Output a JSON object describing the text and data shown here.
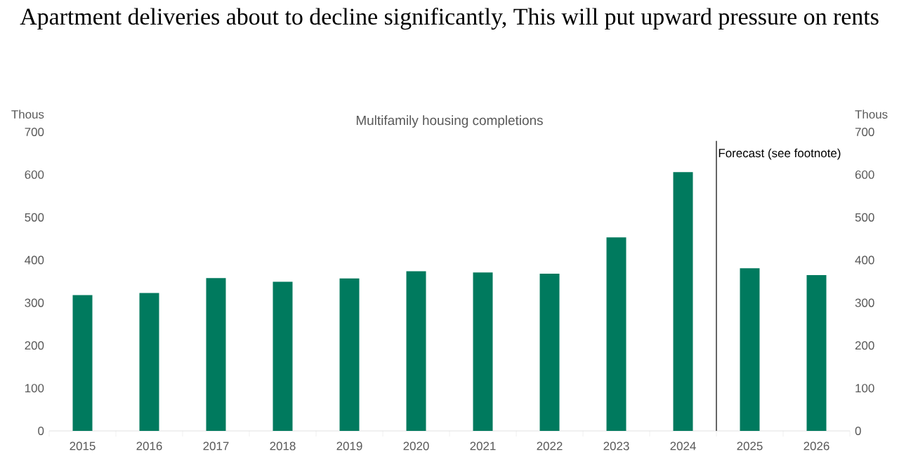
{
  "chart_data": {
    "type": "bar",
    "title": "Apartment deliveries about to decline significantly, This will put upward pressure on rents",
    "subtitle": "Multifamily housing completions",
    "ylabel": "Thous",
    "y2label": "Thous",
    "categories": [
      "2015",
      "2016",
      "2017",
      "2018",
      "2019",
      "2020",
      "2021",
      "2022",
      "2023",
      "2024",
      "2025",
      "2026"
    ],
    "values": [
      318,
      323,
      358,
      349,
      357,
      374,
      371,
      368,
      453,
      606,
      381,
      365
    ],
    "color": "#007a5e",
    "ylim": [
      0,
      700
    ],
    "yticks": [
      0,
      100,
      200,
      300,
      400,
      500,
      600,
      700
    ],
    "y2lim": [
      0,
      700
    ],
    "y2ticks": [
      0,
      100,
      200,
      300,
      400,
      500,
      600,
      700
    ],
    "annotations": [
      "Forecast (see footnote)"
    ],
    "grid": false
  }
}
